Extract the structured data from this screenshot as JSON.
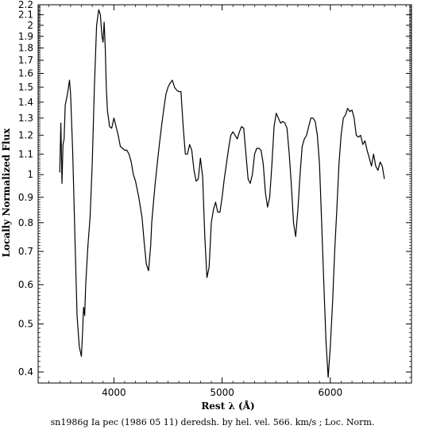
{
  "chart_data": {
    "type": "line",
    "title": "",
    "xlabel": "Rest λ (Å)",
    "ylabel": "Locally Normalized Flux",
    "caption": "sn1986g Ia pec (1986 05 11) deredsh. by hel. vel.   566. km/s ;  Loc. Norm.",
    "xlim": [
      3300,
      6750
    ],
    "ylim": [
      0.38,
      2.2
    ],
    "y_scale": "log",
    "grid": false,
    "x_ticks": [
      4000,
      5000,
      6000
    ],
    "y_ticks": [
      0.4,
      0.5,
      0.6,
      0.7,
      0.8,
      0.9,
      1,
      1.1,
      1.2,
      1.3,
      1.4,
      1.5,
      1.6,
      1.7,
      1.8,
      1.9,
      2,
      2.1,
      2.2
    ],
    "y_tick_labels": [
      "0.4",
      "0.5",
      "0.6",
      "0.7",
      "0.8",
      "0.9",
      "1",
      "1.1",
      "1.2",
      "1.3",
      "1.4",
      "1.5",
      "1.6",
      "1.7",
      "1.8",
      "1.9",
      "2",
      "2.1",
      "2.2"
    ],
    "series": [
      {
        "name": "",
        "color": "#000000",
        "x": [
          3500,
          3510,
          3520,
          3530,
          3540,
          3550,
          3570,
          3590,
          3600,
          3620,
          3640,
          3660,
          3680,
          3700,
          3710,
          3720,
          3730,
          3740,
          3760,
          3780,
          3800,
          3820,
          3840,
          3860,
          3875,
          3890,
          3900,
          3910,
          3920,
          3930,
          3940,
          3960,
          3980,
          4000,
          4020,
          4040,
          4060,
          4080,
          4100,
          4120,
          4140,
          4160,
          4180,
          4200,
          4230,
          4260,
          4280,
          4300,
          4320,
          4340,
          4350,
          4360,
          4380,
          4400,
          4420,
          4440,
          4460,
          4480,
          4500,
          4520,
          4540,
          4560,
          4580,
          4600,
          4620,
          4640,
          4660,
          4680,
          4700,
          4720,
          4740,
          4760,
          4780,
          4800,
          4820,
          4840,
          4860,
          4880,
          4890,
          4900,
          4920,
          4940,
          4960,
          4980,
          5000,
          5020,
          5040,
          5060,
          5080,
          5100,
          5120,
          5140,
          5160,
          5180,
          5200,
          5220,
          5240,
          5260,
          5280,
          5300,
          5320,
          5340,
          5360,
          5380,
          5400,
          5420,
          5440,
          5460,
          5480,
          5500,
          5520,
          5540,
          5560,
          5580,
          5600,
          5620,
          5640,
          5660,
          5680,
          5700,
          5720,
          5740,
          5760,
          5780,
          5800,
          5820,
          5840,
          5860,
          5880,
          5900,
          5920,
          5940,
          5960,
          5980,
          6000,
          6020,
          6040,
          6060,
          6080,
          6100,
          6120,
          6140,
          6160,
          6180,
          6200,
          6220,
          6240,
          6260,
          6280,
          6300,
          6320,
          6340,
          6360,
          6380,
          6400,
          6420,
          6440,
          6460,
          6480,
          6500
        ],
        "y": [
          1.01,
          1.27,
          0.96,
          1.15,
          1.18,
          1.38,
          1.45,
          1.55,
          1.45,
          1.1,
          0.75,
          0.52,
          0.45,
          0.43,
          0.48,
          0.54,
          0.52,
          0.6,
          0.72,
          0.82,
          1.05,
          1.5,
          2.0,
          2.15,
          2.1,
          1.9,
          1.85,
          2.03,
          1.8,
          1.5,
          1.35,
          1.25,
          1.24,
          1.3,
          1.25,
          1.2,
          1.14,
          1.13,
          1.12,
          1.12,
          1.1,
          1.06,
          1.0,
          0.97,
          0.9,
          0.82,
          0.73,
          0.66,
          0.64,
          0.72,
          0.8,
          0.85,
          0.95,
          1.05,
          1.15,
          1.25,
          1.35,
          1.45,
          1.5,
          1.53,
          1.55,
          1.5,
          1.48,
          1.47,
          1.47,
          1.25,
          1.1,
          1.1,
          1.15,
          1.12,
          1.02,
          0.97,
          0.98,
          1.08,
          0.99,
          0.75,
          0.62,
          0.65,
          0.72,
          0.8,
          0.85,
          0.88,
          0.84,
          0.84,
          0.9,
          0.98,
          1.05,
          1.13,
          1.2,
          1.22,
          1.2,
          1.18,
          1.22,
          1.25,
          1.24,
          1.1,
          0.98,
          0.96,
          1.0,
          1.1,
          1.13,
          1.13,
          1.12,
          1.05,
          0.92,
          0.86,
          0.9,
          1.05,
          1.25,
          1.33,
          1.3,
          1.27,
          1.28,
          1.27,
          1.24,
          1.1,
          0.95,
          0.8,
          0.75,
          0.85,
          1.0,
          1.14,
          1.18,
          1.2,
          1.25,
          1.3,
          1.3,
          1.28,
          1.2,
          1.05,
          0.8,
          0.6,
          0.46,
          0.39,
          0.45,
          0.55,
          0.7,
          0.85,
          1.05,
          1.2,
          1.3,
          1.32,
          1.36,
          1.34,
          1.35,
          1.3,
          1.2,
          1.19,
          1.2,
          1.15,
          1.17,
          1.12,
          1.08,
          1.04,
          1.1,
          1.04,
          1.02,
          1.06,
          1.04,
          0.98
        ]
      }
    ]
  }
}
